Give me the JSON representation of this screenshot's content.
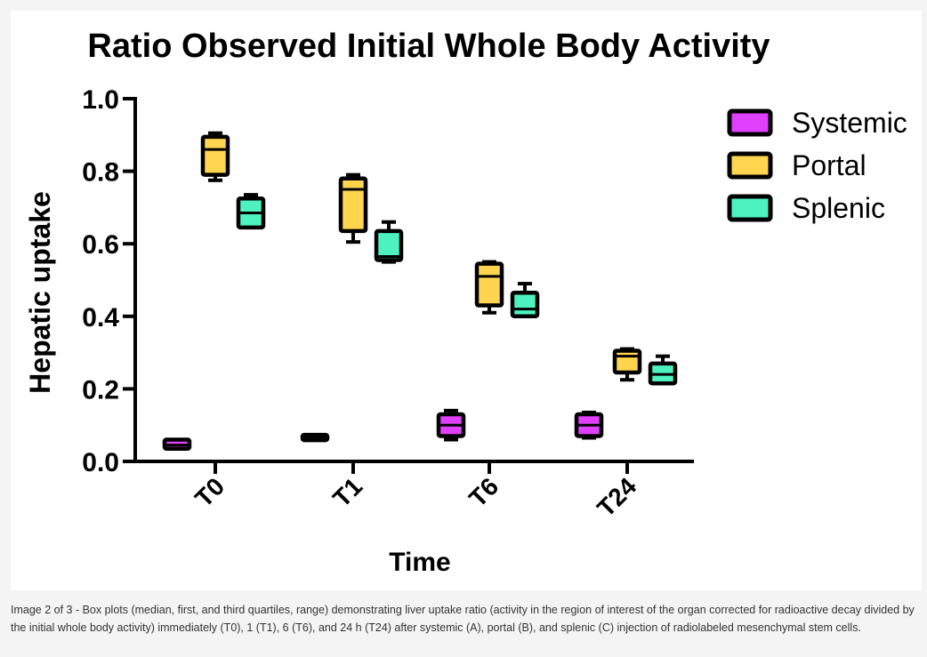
{
  "caption": "Image 2 of 3 - Box plots (median, first, and third quartiles, range) demonstrating liver uptake ratio (activity in the region of interest of the organ corrected for radioactive decay divided by the initial whole body activity) immediately (T0), 1 (T1), 6 (T6), and 24 h (T24) after systemic (A), portal (B), and splenic (C) injection of radiolabeled mesenchymal stem cells.",
  "chart_data": {
    "type": "box",
    "title": "Ratio Observed Initial Whole Body Activity",
    "xlabel": "Time",
    "ylabel": "Hepatic uptake",
    "categories": [
      "T0",
      "T1",
      "T6",
      "T24"
    ],
    "ylim": [
      0,
      1.0
    ],
    "yticks": [
      "0.0",
      "0.2",
      "0.4",
      "0.6",
      "0.8",
      "1.0"
    ],
    "grid": false,
    "legend_position": "top-right",
    "series": [
      {
        "name": "Systemic",
        "color": "#e040fb",
        "boxes": [
          {
            "category": "T0",
            "min": 0.035,
            "q1": 0.035,
            "median": 0.045,
            "q3": 0.06,
            "max": 0.06
          },
          {
            "category": "T1",
            "min": 0.062,
            "q1": 0.062,
            "median": 0.065,
            "q3": 0.07,
            "max": 0.07
          },
          {
            "category": "T6",
            "min": 0.06,
            "q1": 0.07,
            "median": 0.1,
            "q3": 0.13,
            "max": 0.14
          },
          {
            "category": "T24",
            "min": 0.065,
            "q1": 0.07,
            "median": 0.1,
            "q3": 0.13,
            "max": 0.135
          }
        ]
      },
      {
        "name": "Portal",
        "color": "#ffd54f",
        "boxes": [
          {
            "category": "T0",
            "min": 0.775,
            "q1": 0.79,
            "median": 0.86,
            "q3": 0.895,
            "max": 0.905
          },
          {
            "category": "T1",
            "min": 0.605,
            "q1": 0.635,
            "median": 0.75,
            "q3": 0.78,
            "max": 0.79
          },
          {
            "category": "T6",
            "min": 0.41,
            "q1": 0.43,
            "median": 0.51,
            "q3": 0.545,
            "max": 0.55
          },
          {
            "category": "T24",
            "min": 0.225,
            "q1": 0.245,
            "median": 0.29,
            "q3": 0.305,
            "max": 0.31
          }
        ]
      },
      {
        "name": "Splenic",
        "color": "#4df2c0",
        "boxes": [
          {
            "category": "T0",
            "min": 0.645,
            "q1": 0.645,
            "median": 0.685,
            "q3": 0.725,
            "max": 0.735
          },
          {
            "category": "T1",
            "min": 0.55,
            "q1": 0.555,
            "median": 0.565,
            "q3": 0.635,
            "max": 0.66
          },
          {
            "category": "T6",
            "min": 0.4,
            "q1": 0.4,
            "median": 0.42,
            "q3": 0.465,
            "max": 0.49
          },
          {
            "category": "T24",
            "min": 0.215,
            "q1": 0.215,
            "median": 0.24,
            "q3": 0.27,
            "max": 0.29
          }
        ]
      }
    ]
  }
}
